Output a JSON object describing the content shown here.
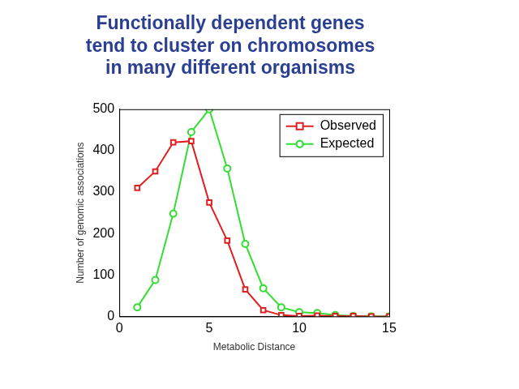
{
  "chart_data": {
    "type": "line",
    "title": [
      "Functionally dependent genes",
      "tend to cluster on chromosomes",
      "in many different organisms"
    ],
    "x_label": "Metabolic Distance",
    "y_label": "Number of genomic associations",
    "x": [
      1,
      2,
      3,
      4,
      5,
      6,
      7,
      8,
      9,
      10,
      11,
      12,
      13,
      14,
      15
    ],
    "series": [
      {
        "name": "Observed",
        "color": "#e02020",
        "marker": "square",
        "values": [
          310,
          350,
          420,
          423,
          275,
          183,
          65,
          15,
          3,
          1,
          2,
          1,
          1,
          0,
          0
        ]
      },
      {
        "name": "Expected",
        "color": "#33dd33",
        "marker": "circle",
        "values": [
          22,
          88,
          248,
          445,
          500,
          357,
          175,
          68,
          22,
          10,
          8,
          3,
          1,
          0,
          0
        ]
      }
    ],
    "xlim": [
      0,
      15
    ],
    "xticks": [
      0,
      5,
      10,
      15
    ],
    "ylim": [
      0,
      500
    ],
    "yticks": [
      0,
      100,
      200,
      300,
      400,
      500
    ],
    "grid": false,
    "legend": "upper right"
  }
}
